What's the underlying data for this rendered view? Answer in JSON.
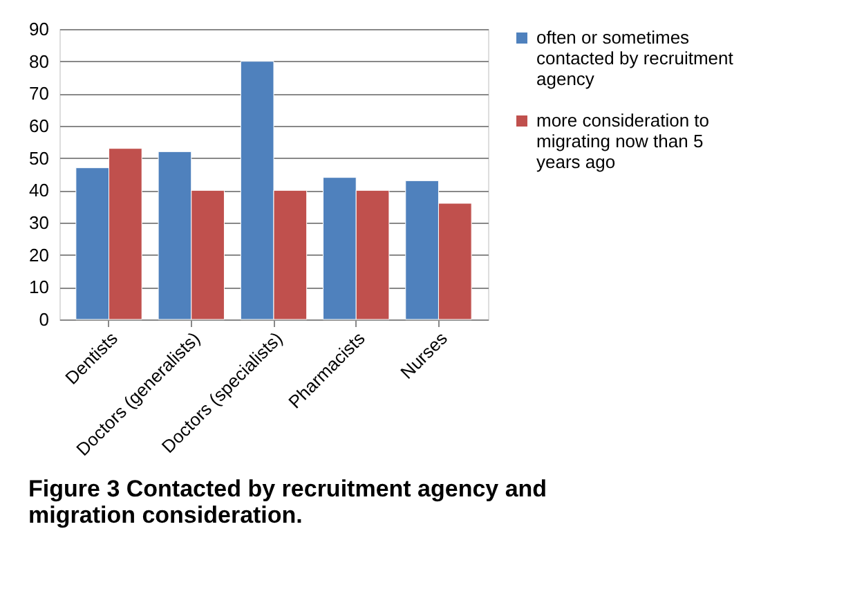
{
  "chart_data": {
    "type": "bar",
    "categories": [
      "Dentists",
      "Doctors (generalists)",
      "Doctors (specialists)",
      "Pharmacists",
      "Nurses"
    ],
    "series": [
      {
        "name": "often or sometimes contacted by recruitment agency",
        "color": "#4f81bd",
        "values": [
          47,
          52,
          80,
          44,
          43
        ]
      },
      {
        "name": "more consideration to migrating now than 5 years ago",
        "color": "#c0504d",
        "values": [
          53,
          40,
          40,
          40,
          36
        ]
      }
    ],
    "ylim": [
      0,
      90
    ],
    "yticks": [
      0,
      10,
      20,
      30,
      40,
      50,
      60,
      70,
      80,
      90
    ],
    "grid": "y",
    "legend": "right",
    "annotations": [
      "Figure 3 Contacted by recruitment agency and migration consideration."
    ]
  }
}
